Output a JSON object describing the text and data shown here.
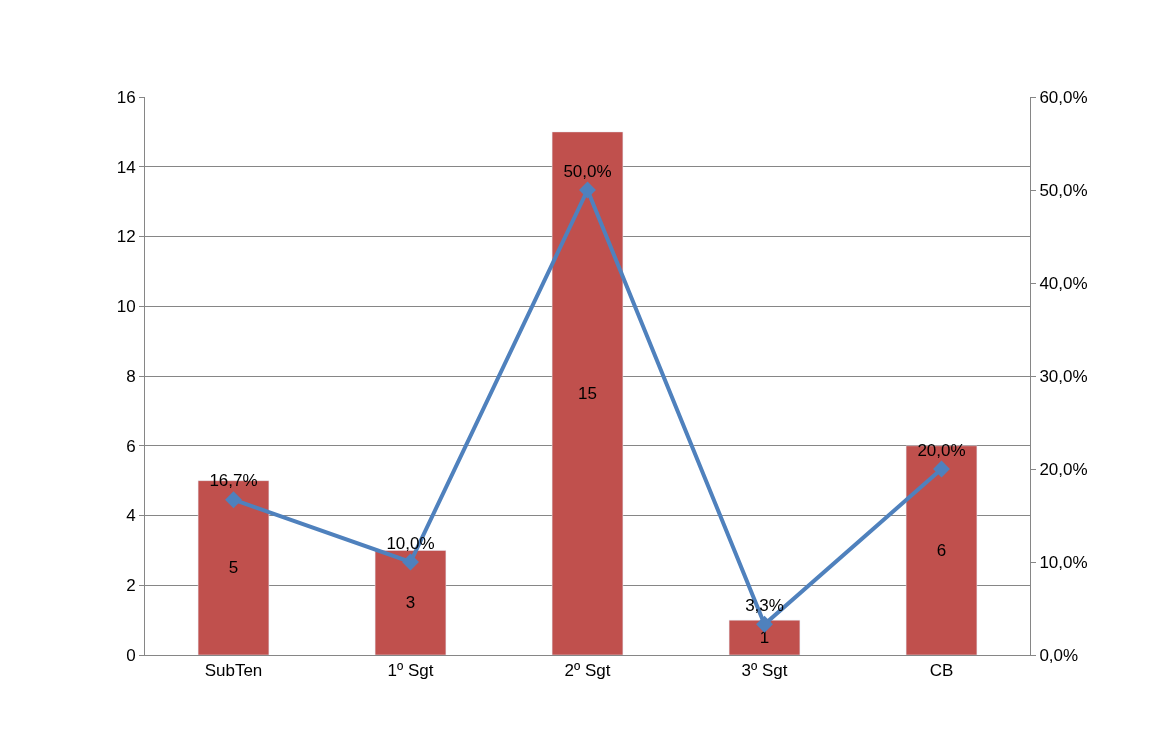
{
  "chart_data": {
    "type": "bar",
    "categories": [
      "SubTen",
      "1º Sgt",
      "2º Sgt",
      "3º Sgt",
      "CB"
    ],
    "series": [
      {
        "color": "#c0504d",
        "values": [
          5,
          3,
          15,
          1,
          6
        ],
        "value_labels": [
          "5",
          "3",
          "15",
          "1",
          "6"
        ]
      },
      {
        "type": "line",
        "axis": "y2",
        "color": "#4f81bd",
        "marker": "diamond",
        "values": [
          16.7,
          10.0,
          50.0,
          3.3,
          20.0
        ],
        "value_labels": [
          "16,7%",
          "10,0%",
          "50,0%",
          "3,3%",
          "20,0%"
        ]
      }
    ],
    "ylim": [
      0,
      16
    ],
    "yticks": [
      0,
      2,
      4,
      6,
      8,
      10,
      12,
      14,
      16
    ],
    "y2lim": [
      0,
      60
    ],
    "y2ticks": [
      {
        "value": 0,
        "label": "0,0%"
      },
      {
        "value": 10,
        "label": "10,0%"
      },
      {
        "value": 20,
        "label": "20,0%"
      },
      {
        "value": 30,
        "label": "30,0%"
      },
      {
        "value": 40,
        "label": "40,0%"
      },
      {
        "value": 50,
        "label": "50,0%"
      },
      {
        "value": 60,
        "label": "60,0%"
      }
    ],
    "grid": "y"
  }
}
